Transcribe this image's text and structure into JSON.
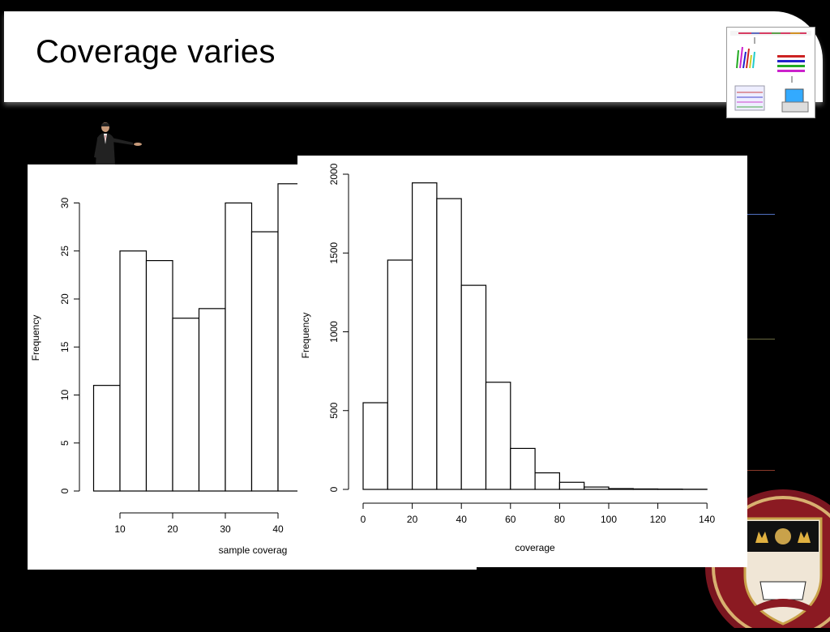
{
  "slide": {
    "title": "Coverage varies"
  },
  "colors": {
    "background": "#000000",
    "panel": "#ffffff",
    "seal_maroon": "#8b1a22",
    "seal_gold": "#c9a24a"
  },
  "icons": {
    "presenter": "presenter-figure-icon",
    "seal": "college-seal-icon",
    "thumbnail": "sequencing-diagram-thumbnail"
  },
  "chart_data": [
    {
      "type": "bar",
      "xlabel": "sample coverag",
      "ylabel": "Frequency",
      "x_ticks": [
        "10",
        "20",
        "30",
        "40"
      ],
      "y_ticks": [
        "0",
        "5",
        "10",
        "15",
        "20",
        "25",
        "30"
      ],
      "bins": [
        [
          5,
          10
        ],
        [
          10,
          15
        ],
        [
          15,
          20
        ],
        [
          20,
          25
        ],
        [
          25,
          30
        ],
        [
          30,
          35
        ],
        [
          35,
          40
        ],
        [
          40,
          45
        ]
      ],
      "values": [
        11,
        25,
        24,
        18,
        19,
        30,
        27,
        32
      ],
      "ylim": [
        0,
        30
      ]
    },
    {
      "type": "bar",
      "xlabel": "coverage",
      "ylabel": "Frequency",
      "x_ticks": [
        "0",
        "20",
        "40",
        "60",
        "80",
        "100",
        "120",
        "140"
      ],
      "y_ticks": [
        "0",
        "500",
        "1000",
        "1500",
        "2000"
      ],
      "bins": [
        [
          0,
          10
        ],
        [
          10,
          20
        ],
        [
          20,
          30
        ],
        [
          30,
          40
        ],
        [
          40,
          50
        ],
        [
          50,
          60
        ],
        [
          60,
          70
        ],
        [
          70,
          80
        ],
        [
          80,
          90
        ],
        [
          90,
          100
        ],
        [
          100,
          110
        ],
        [
          110,
          120
        ],
        [
          120,
          130
        ],
        [
          130,
          140
        ]
      ],
      "values": [
        550,
        1455,
        1945,
        1845,
        1295,
        680,
        260,
        105,
        45,
        15,
        5,
        3,
        2,
        1
      ],
      "xlim": [
        0,
        140
      ],
      "ylim": [
        0,
        2000
      ]
    }
  ]
}
